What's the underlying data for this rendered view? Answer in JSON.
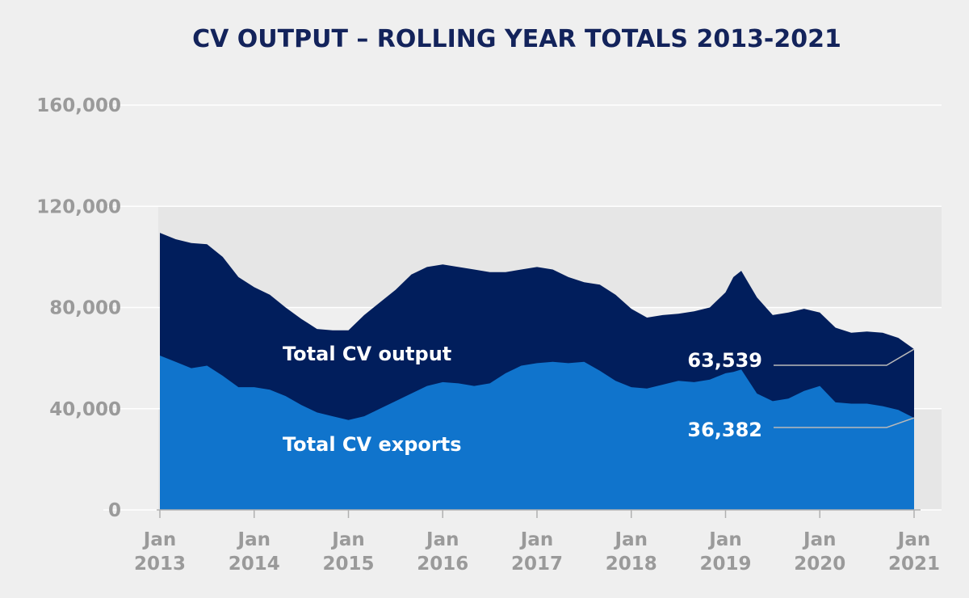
{
  "chart_data": {
    "type": "area",
    "title": "CV OUTPUT – ROLLING YEAR TOTALS 2013-2021",
    "xlabel": "",
    "ylabel": "",
    "ylim": [
      0,
      160000
    ],
    "yticks": [
      {
        "value": 0,
        "label": "0"
      },
      {
        "value": 40000,
        "label": "40,000"
      },
      {
        "value": 80000,
        "label": "80,000"
      },
      {
        "value": 120000,
        "label": "120,000"
      },
      {
        "value": 160000,
        "label": "160,000"
      }
    ],
    "xticks": [
      {
        "x": "2013-01",
        "line1": "Jan",
        "line2": "2013"
      },
      {
        "x": "2014-01",
        "line1": "Jan",
        "line2": "2014"
      },
      {
        "x": "2015-01",
        "line1": "Jan",
        "line2": "2015"
      },
      {
        "x": "2016-01",
        "line1": "Jan",
        "line2": "2016"
      },
      {
        "x": "2017-01",
        "line1": "Jan",
        "line2": "2017"
      },
      {
        "x": "2018-01",
        "line1": "Jan",
        "line2": "2018"
      },
      {
        "x": "2019-01",
        "line1": "Jan",
        "line2": "2019"
      },
      {
        "x": "2020-01",
        "line1": "Jan",
        "line2": "2020"
      },
      {
        "x": "2021-01",
        "line1": "Jan",
        "line2": "2021"
      }
    ],
    "grid": true,
    "series": [
      {
        "name": "Total CV output",
        "color": "#011e5c",
        "end_label": "63,539",
        "x": [
          "2013-01",
          "2013-03",
          "2013-05",
          "2013-07",
          "2013-09",
          "2013-11",
          "2014-01",
          "2014-03",
          "2014-05",
          "2014-07",
          "2014-09",
          "2014-11",
          "2015-01",
          "2015-03",
          "2015-05",
          "2015-07",
          "2015-09",
          "2015-11",
          "2016-01",
          "2016-03",
          "2016-05",
          "2016-07",
          "2016-09",
          "2016-11",
          "2017-01",
          "2017-03",
          "2017-05",
          "2017-07",
          "2017-09",
          "2017-11",
          "2018-01",
          "2018-03",
          "2018-05",
          "2018-07",
          "2018-09",
          "2018-11",
          "2019-01",
          "2019-02",
          "2019-03",
          "2019-05",
          "2019-07",
          "2019-09",
          "2019-11",
          "2020-01",
          "2020-03",
          "2020-05",
          "2020-07",
          "2020-09",
          "2020-11",
          "2021-01"
        ],
        "values": [
          109500,
          107000,
          105500,
          105000,
          100000,
          92000,
          88000,
          85000,
          80000,
          75500,
          71500,
          71000,
          71000,
          77000,
          82000,
          87000,
          93000,
          96000,
          97000,
          96000,
          95000,
          94000,
          94000,
          95000,
          96000,
          95000,
          92000,
          90000,
          89000,
          85000,
          79500,
          76000,
          77000,
          77500,
          78500,
          80000,
          86000,
          92000,
          94500,
          84000,
          77000,
          78000,
          79500,
          78000,
          72000,
          70000,
          70500,
          70000,
          68000,
          63539
        ]
      },
      {
        "name": "Total CV exports",
        "color": "#1074cc",
        "end_label": "36,382",
        "x": [
          "2013-01",
          "2013-03",
          "2013-05",
          "2013-07",
          "2013-09",
          "2013-11",
          "2014-01",
          "2014-03",
          "2014-05",
          "2014-07",
          "2014-09",
          "2014-11",
          "2015-01",
          "2015-03",
          "2015-05",
          "2015-07",
          "2015-09",
          "2015-11",
          "2016-01",
          "2016-03",
          "2016-05",
          "2016-07",
          "2016-09",
          "2016-11",
          "2017-01",
          "2017-03",
          "2017-05",
          "2017-07",
          "2017-09",
          "2017-11",
          "2018-01",
          "2018-03",
          "2018-05",
          "2018-07",
          "2018-09",
          "2018-11",
          "2019-01",
          "2019-02",
          "2019-03",
          "2019-05",
          "2019-07",
          "2019-09",
          "2019-11",
          "2020-01",
          "2020-03",
          "2020-05",
          "2020-07",
          "2020-09",
          "2020-11",
          "2021-01"
        ],
        "values": [
          61000,
          58500,
          56000,
          57000,
          53000,
          48500,
          48500,
          47500,
          45000,
          41500,
          38500,
          37000,
          35500,
          37000,
          40000,
          43000,
          46000,
          49000,
          50500,
          50000,
          49000,
          50000,
          54000,
          57000,
          58000,
          58500,
          58000,
          58500,
          55000,
          51000,
          48500,
          48000,
          49500,
          51000,
          50500,
          51500,
          54000,
          54500,
          55500,
          46000,
          43000,
          44000,
          47000,
          49000,
          42500,
          42000,
          42000,
          41000,
          39500,
          36382
        ]
      }
    ]
  }
}
